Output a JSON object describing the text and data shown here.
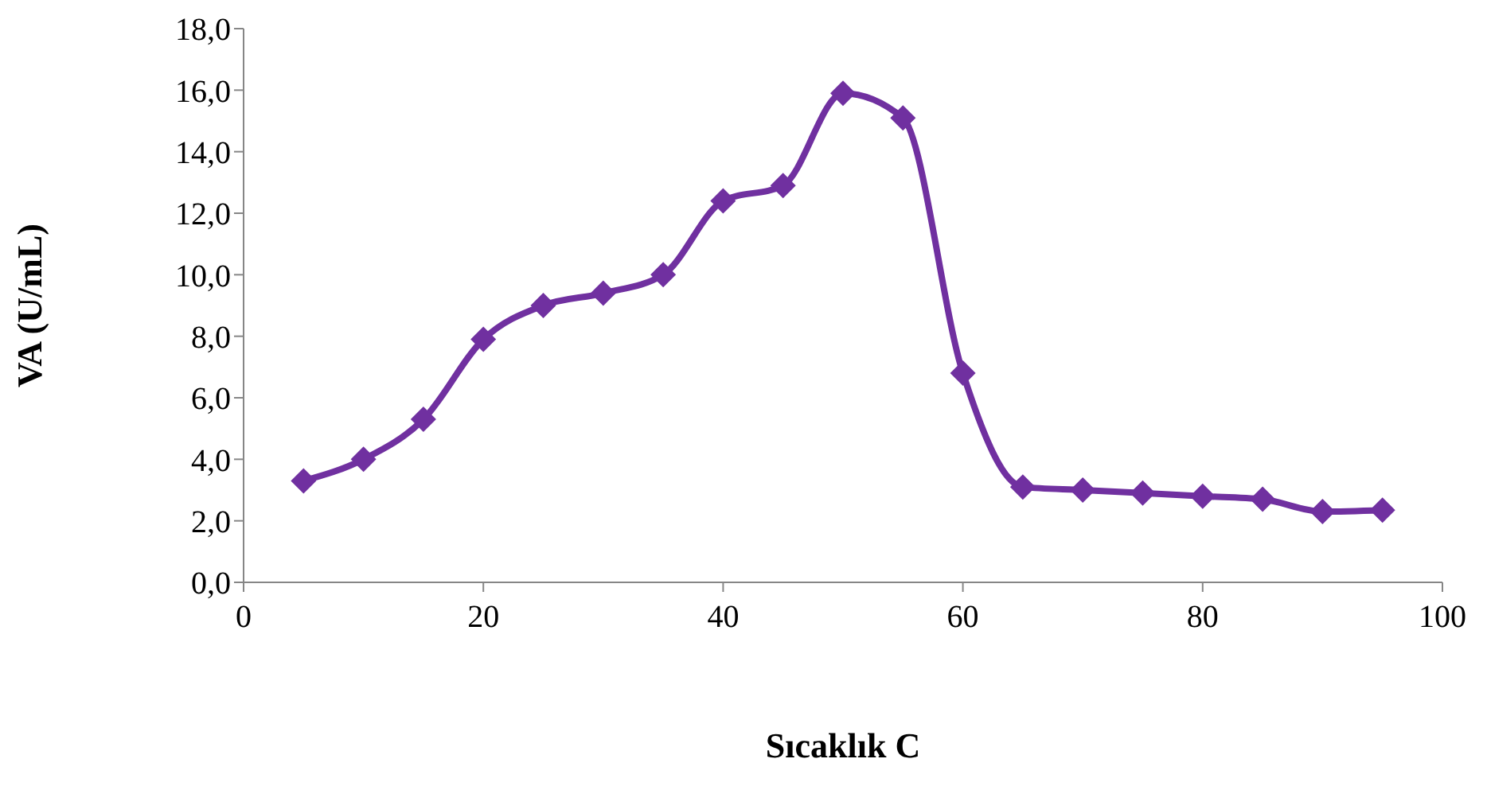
{
  "chart_data": {
    "type": "line",
    "xlabel": "Sıcaklık   C",
    "ylabel": "VA (U/mL)",
    "x": [
      5,
      10,
      15,
      20,
      25,
      30,
      35,
      40,
      45,
      50,
      55,
      60,
      65,
      70,
      75,
      80,
      85,
      90,
      95
    ],
    "series": [
      {
        "color": "#7030a0",
        "values": [
          3.3,
          4.0,
          5.3,
          7.9,
          9.0,
          9.4,
          10.0,
          12.4,
          12.9,
          15.9,
          15.1,
          6.8,
          3.1,
          3.0,
          2.9,
          2.8,
          2.7,
          2.3,
          2.35
        ]
      }
    ],
    "xlim": [
      0,
      100
    ],
    "xticks": [
      0,
      20,
      40,
      60,
      80,
      100
    ],
    "ylim": [
      0,
      18
    ],
    "yticks": [
      {
        "value": 0,
        "label": "0,0"
      },
      {
        "value": 2,
        "label": "2,0"
      },
      {
        "value": 4,
        "label": "4,0"
      },
      {
        "value": 6,
        "label": "6,0"
      },
      {
        "value": 8,
        "label": "8,0"
      },
      {
        "value": 10,
        "label": "10,0"
      },
      {
        "value": 12,
        "label": "12,0"
      },
      {
        "value": 14,
        "label": "14,0"
      },
      {
        "value": 16,
        "label": "16,0"
      },
      {
        "value": 18,
        "label": "18,0"
      }
    ],
    "grid": false,
    "legend": false,
    "marker": "diamond",
    "line_style": "solid"
  }
}
